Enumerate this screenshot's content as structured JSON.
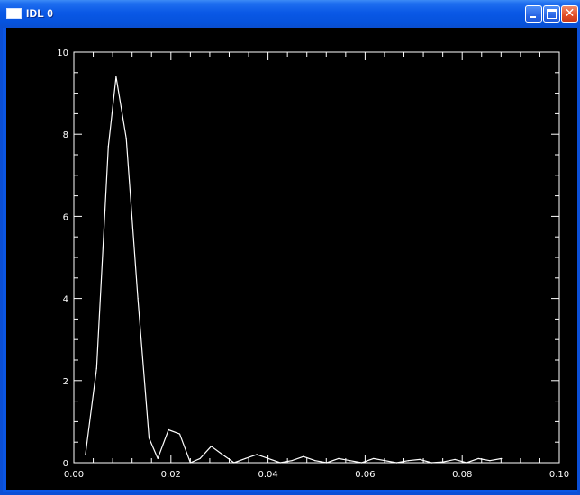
{
  "window": {
    "title": "IDL 0",
    "icons": {
      "app": "window-icon",
      "minimize": "minimize-icon",
      "maximize": "maximize-icon",
      "close": "close-icon"
    },
    "colors": {
      "titlebar": "#0a56e4",
      "plot_background": "#000000",
      "plot_foreground": "#ffffff",
      "close_button": "#e24d25"
    }
  },
  "chart_data": {
    "type": "line",
    "title": "",
    "xlabel": "",
    "ylabel": "",
    "xlim": [
      0,
      0.1
    ],
    "ylim": [
      0,
      10
    ],
    "xticks": [
      0.0,
      0.02,
      0.04,
      0.06,
      0.08,
      0.1
    ],
    "xtick_labels": [
      "0.00",
      "0.02",
      "0.04",
      "0.06",
      "0.08",
      "0.10"
    ],
    "yticks": [
      0,
      2,
      4,
      6,
      8,
      10
    ],
    "ytick_labels": [
      "0",
      "2",
      "4",
      "6",
      "8",
      "10"
    ],
    "x_minor_per_major": 5,
    "y_minor_per_major": 4,
    "grid": false,
    "legend": "none",
    "series": [
      {
        "x": [
          0.0024,
          0.0047,
          0.0071,
          0.0087,
          0.0108,
          0.0132,
          0.0155,
          0.0173,
          0.0195,
          0.0218,
          0.024,
          0.026,
          0.0283,
          0.0306,
          0.033,
          0.0353,
          0.0377,
          0.0401,
          0.0425,
          0.0449,
          0.0473,
          0.0497,
          0.0521,
          0.0545,
          0.0569,
          0.0593,
          0.0617,
          0.0641,
          0.0665,
          0.0689,
          0.0713,
          0.0737,
          0.0761,
          0.0785,
          0.0809,
          0.0833,
          0.0857,
          0.0881
        ],
        "y": [
          0.2,
          2.3,
          7.7,
          9.4,
          7.9,
          4.0,
          0.6,
          0.1,
          0.8,
          0.7,
          0.0,
          0.1,
          0.4,
          0.2,
          0.0,
          0.1,
          0.2,
          0.1,
          0.0,
          0.05,
          0.15,
          0.05,
          0.0,
          0.1,
          0.05,
          0.0,
          0.1,
          0.05,
          0.0,
          0.05,
          0.08,
          0.0,
          0.02,
          0.08,
          0.0,
          0.1,
          0.05,
          0.1
        ]
      }
    ]
  }
}
